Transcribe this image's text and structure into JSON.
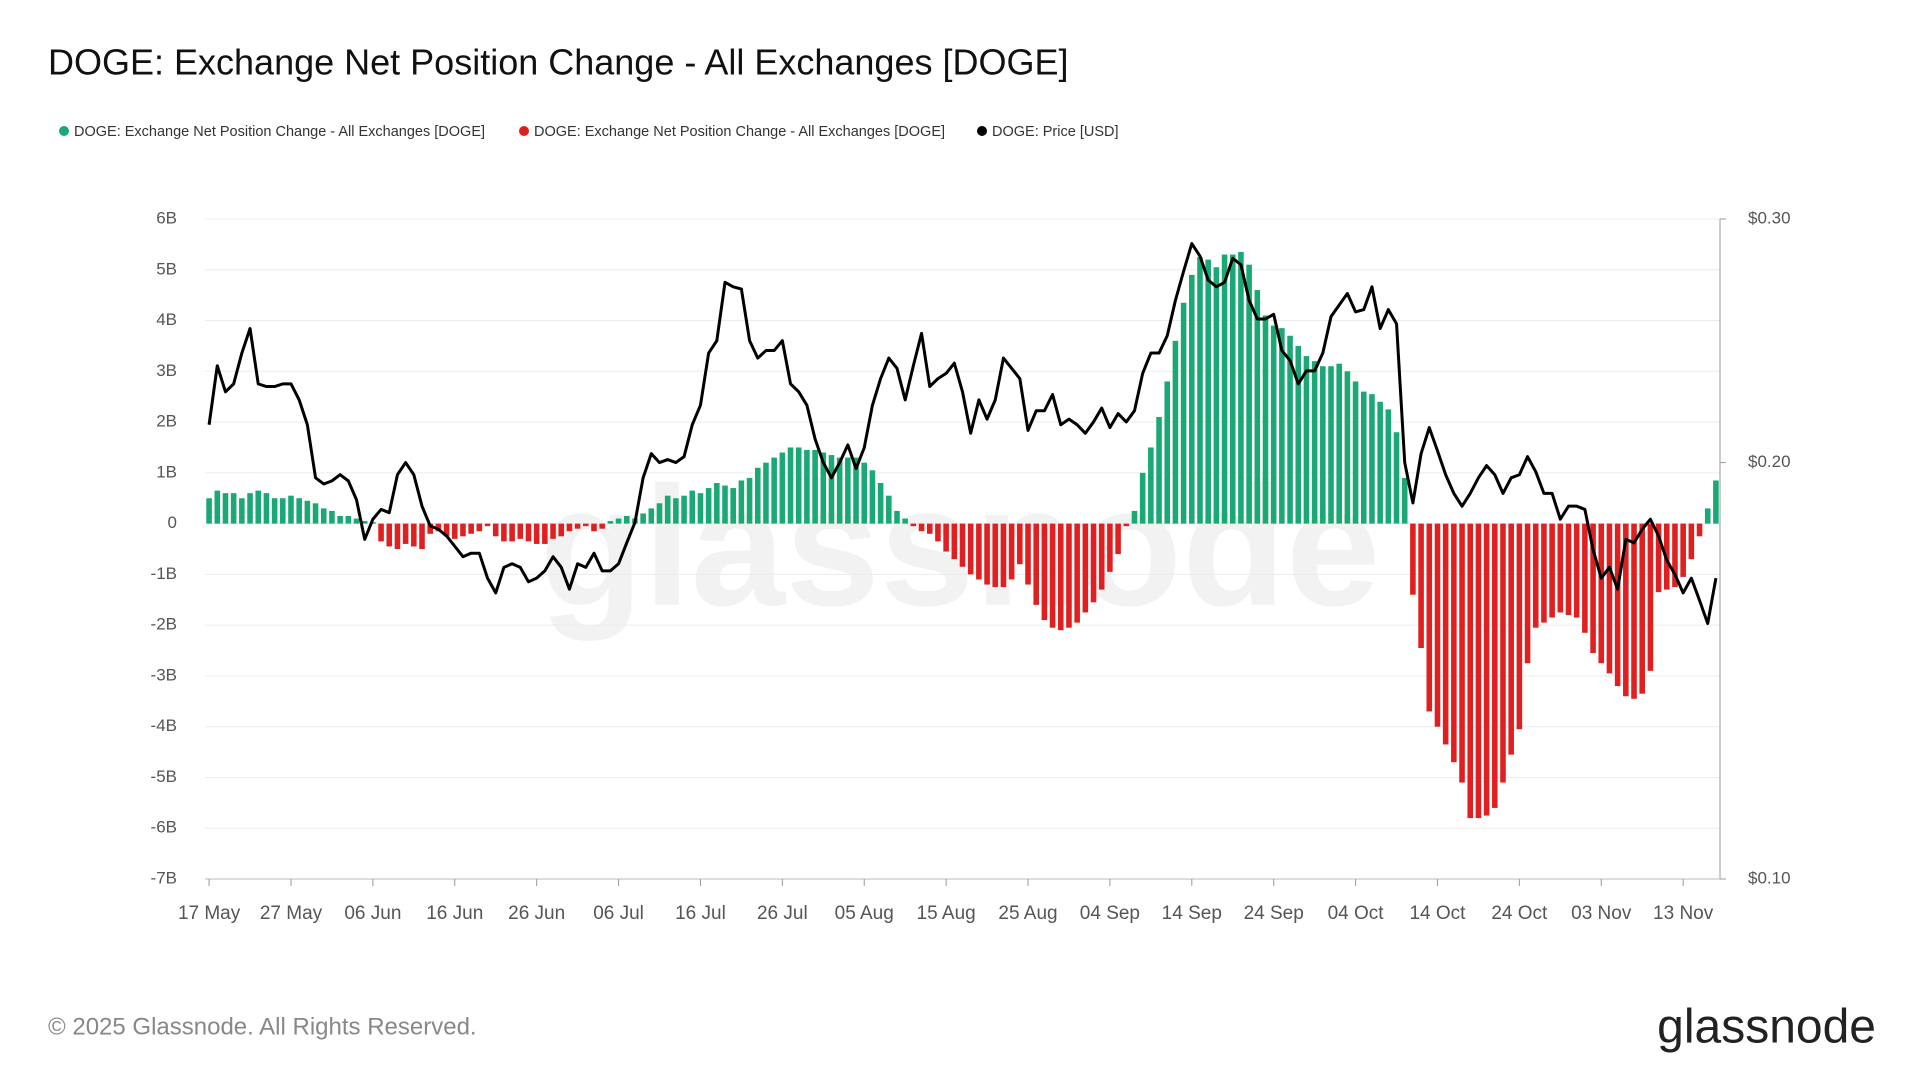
{
  "chart_data": {
    "type": "bar",
    "title": "DOGE: Exchange Net Position Change - All Exchanges [DOGE]",
    "watermark": "glassnode",
    "copyright": "© 2025 Glassnode. All Rights Reserved.",
    "logo": "glassnode",
    "categories": [
      "17 May",
      null,
      null,
      null,
      null,
      null,
      null,
      null,
      null,
      null,
      "27 May",
      null,
      null,
      null,
      null,
      null,
      null,
      null,
      null,
      null,
      "06 Jun",
      null,
      null,
      null,
      null,
      null,
      null,
      null,
      null,
      null,
      "16 Jun",
      null,
      null,
      null,
      null,
      null,
      null,
      null,
      null,
      null,
      "26 Jun",
      null,
      null,
      null,
      null,
      null,
      null,
      null,
      null,
      null,
      "06 Jul",
      null,
      null,
      null,
      null,
      null,
      null,
      null,
      null,
      null,
      "16 Jul",
      null,
      null,
      null,
      null,
      null,
      null,
      null,
      null,
      null,
      "26 Jul",
      null,
      null,
      null,
      null,
      null,
      null,
      null,
      null,
      null,
      "05 Aug",
      null,
      null,
      null,
      null,
      null,
      null,
      null,
      null,
      null,
      "15 Aug",
      null,
      null,
      null,
      null,
      null,
      null,
      null,
      null,
      null,
      "25 Aug",
      null,
      null,
      null,
      null,
      null,
      null,
      null,
      null,
      null,
      "04 Sep",
      null,
      null,
      null,
      null,
      null,
      null,
      null,
      null,
      null,
      "14 Sep",
      null,
      null,
      null,
      null,
      null,
      null,
      null,
      null,
      null,
      "24 Sep",
      null,
      null,
      null,
      null,
      null,
      null,
      null,
      null,
      null,
      "04 Oct",
      null,
      null,
      null,
      null,
      null,
      null,
      null,
      null,
      null,
      "14 Oct",
      null,
      null,
      null,
      null,
      null,
      null,
      null,
      null,
      null,
      "24 Oct",
      null,
      null,
      null,
      null,
      null,
      null,
      null,
      null,
      null,
      "03 Nov",
      null,
      null,
      null,
      null,
      null,
      null,
      null,
      null,
      null,
      "13 Nov",
      null,
      null,
      null,
      null
    ],
    "series": [
      {
        "name": "DOGE: Exchange Net Position Change - All Exchanges [DOGE]",
        "color": "#1aa874",
        "type": "bar",
        "values": [
          500000000.0,
          650000000.0,
          600000000.0,
          600000000.0,
          500000000.0,
          600000000.0,
          650000000.0,
          600000000.0,
          500000000.0,
          500000000.0,
          550000000.0,
          500000000.0,
          450000000.0,
          400000000.0,
          300000000.0,
          250000000.0,
          150000000.0,
          150000000.0,
          100000000.0,
          50000000.0,
          30000000.0,
          null,
          null,
          null,
          null,
          null,
          null,
          null,
          null,
          null,
          null,
          null,
          null,
          null,
          null,
          null,
          null,
          null,
          null,
          null,
          null,
          null,
          null,
          null,
          null,
          null,
          null,
          null,
          null,
          50000000.0,
          100000000.0,
          150000000.0,
          100000000.0,
          200000000.0,
          300000000.0,
          400000000.0,
          550000000.0,
          500000000.0,
          550000000.0,
          650000000.0,
          600000000.0,
          700000000.0,
          800000000.0,
          750000000.0,
          700000000.0,
          850000000.0,
          900000000.0,
          1100000000.0,
          1200000000.0,
          1300000000.0,
          1400000000.0,
          1500000000.0,
          1500000000.0,
          1450000000.0,
          1450000000.0,
          1400000000.0,
          1350000000.0,
          1300000000.0,
          1300000000.0,
          1300000000.0,
          1200000000.0,
          1050000000.0,
          800000000.0,
          550000000.0,
          250000000.0,
          100000000.0,
          null,
          null,
          null,
          null,
          null,
          null,
          null,
          null,
          null,
          null,
          null,
          null,
          null,
          null,
          null,
          null,
          null,
          null,
          null,
          null,
          null,
          null,
          null,
          null,
          null,
          null,
          null,
          250000000.0,
          1000000000.0,
          1500000000.0,
          2100000000.0,
          2800000000.0,
          3600000000.0,
          4350000000.0,
          4900000000.0,
          5250000000.0,
          5200000000.0,
          5050000000.0,
          5300000000.0,
          5300000000.0,
          5350000000.0,
          5100000000.0,
          4600000000.0,
          4100000000.0,
          3900000000.0,
          3850000000.0,
          3700000000.0,
          3500000000.0,
          3300000000.0,
          3200000000.0,
          3100000000.0,
          3100000000.0,
          3150000000.0,
          3000000000.0,
          2800000000.0,
          2600000000.0,
          2550000000.0,
          2400000000.0,
          2250000000.0,
          1800000000.0,
          900000000.0,
          null,
          null,
          null,
          null,
          null,
          null,
          null,
          null,
          null,
          null,
          null,
          null,
          null,
          null,
          null,
          null,
          null,
          null,
          null,
          null,
          null,
          null,
          null,
          null,
          null,
          null,
          null,
          null,
          null,
          null,
          null,
          null,
          null,
          null,
          null,
          null,
          300000000.0,
          850000000.0
        ]
      },
      {
        "name": "DOGE: Exchange Net Position Change - All Exchanges [DOGE]",
        "color": "#e02020",
        "type": "bar",
        "values": [
          null,
          null,
          null,
          null,
          null,
          null,
          null,
          null,
          null,
          null,
          null,
          null,
          null,
          null,
          null,
          null,
          null,
          null,
          null,
          null,
          null,
          -350000000.0,
          -450000000.0,
          -500000000.0,
          -400000000.0,
          -450000000.0,
          -500000000.0,
          -200000000.0,
          -150000000.0,
          -250000000.0,
          -300000000.0,
          -250000000.0,
          -200000000.0,
          -150000000.0,
          -50000000.0,
          -250000000.0,
          -350000000.0,
          -350000000.0,
          -300000000.0,
          -350000000.0,
          -400000000.0,
          -400000000.0,
          -300000000.0,
          -250000000.0,
          -150000000.0,
          -100000000.0,
          -50000000.0,
          -150000000.0,
          -100000000.0,
          null,
          null,
          null,
          null,
          null,
          null,
          null,
          null,
          null,
          null,
          null,
          null,
          null,
          null,
          null,
          null,
          null,
          null,
          null,
          null,
          null,
          null,
          null,
          null,
          null,
          null,
          null,
          null,
          null,
          null,
          null,
          null,
          null,
          null,
          null,
          null,
          null,
          -50000000.0,
          -150000000.0,
          -200000000.0,
          -350000000.0,
          -550000000.0,
          -700000000.0,
          -850000000.0,
          -1000000000.0,
          -1100000000.0,
          -1200000000.0,
          -1250000000.0,
          -1250000000.0,
          -1100000000.0,
          -800000000.0,
          -1200000000.0,
          -1600000000.0,
          -1900000000.0,
          -2050000000.0,
          -2100000000.0,
          -2050000000.0,
          -1950000000.0,
          -1750000000.0,
          -1550000000.0,
          -1300000000.0,
          -950000000.0,
          -600000000.0,
          -50000000.0,
          null,
          null,
          null,
          null,
          null,
          null,
          null,
          null,
          null,
          null,
          null,
          null,
          null,
          null,
          null,
          null,
          null,
          null,
          null,
          null,
          null,
          null,
          null,
          null,
          null,
          null,
          null,
          null,
          null,
          null,
          null,
          null,
          null,
          null,
          -1400000000.0,
          -2450000000.0,
          -3700000000.0,
          -4000000000.0,
          -4350000000.0,
          -4700000000.0,
          -5100000000.0,
          -5800000000.0,
          -5800000000.0,
          -5750000000.0,
          -5600000000.0,
          -5100000000.0,
          -4550000000.0,
          -4050000000.0,
          -2750000000.0,
          -2050000000.0,
          -1950000000.0,
          -1850000000.0,
          -1750000000.0,
          -1800000000.0,
          -1850000000.0,
          -2150000000.0,
          -2550000000.0,
          -2750000000.0,
          -2950000000.0,
          -3200000000.0,
          -3400000000.0,
          -3450000000.0,
          -3350000000.0,
          -2900000000.0,
          -1350000000.0,
          -1300000000.0,
          -1250000000.0,
          -1050000000.0,
          -700000000.0,
          -250000000.0,
          null,
          null
        ]
      },
      {
        "name": "DOGE: Price [USD]",
        "color": "#000000",
        "type": "line",
        "axis": "y2",
        "values": [
          0.213,
          0.235,
          0.225,
          0.228,
          0.24,
          0.25,
          0.228,
          0.227,
          0.227,
          0.228,
          0.228,
          0.222,
          0.213,
          0.195,
          0.193,
          0.194,
          0.196,
          0.194,
          0.188,
          0.176,
          0.182,
          0.185,
          0.184,
          0.196,
          0.2,
          0.196,
          0.186,
          0.18,
          0.179,
          0.177,
          0.174,
          0.171,
          0.172,
          0.172,
          0.165,
          0.161,
          0.168,
          0.169,
          0.168,
          0.164,
          0.165,
          0.167,
          0.171,
          0.168,
          0.162,
          0.169,
          0.168,
          0.172,
          0.167,
          0.167,
          0.169,
          0.175,
          0.181,
          0.195,
          0.203,
          0.2,
          0.201,
          0.2,
          0.202,
          0.213,
          0.22,
          0.24,
          0.245,
          0.27,
          0.268,
          0.267,
          0.245,
          0.238,
          0.241,
          0.241,
          0.245,
          0.228,
          0.225,
          0.22,
          0.208,
          0.2,
          0.195,
          0.2,
          0.206,
          0.198,
          0.205,
          0.22,
          0.23,
          0.238,
          0.234,
          0.222,
          0.235,
          0.248,
          0.227,
          0.23,
          0.232,
          0.236,
          0.225,
          0.21,
          0.222,
          0.215,
          0.222,
          0.238,
          0.234,
          0.23,
          0.211,
          0.218,
          0.218,
          0.224,
          0.213,
          0.215,
          0.213,
          0.21,
          0.214,
          0.219,
          0.212,
          0.217,
          0.214,
          0.218,
          0.232,
          0.24,
          0.24,
          0.247,
          0.262,
          0.275,
          0.288,
          0.282,
          0.271,
          0.268,
          0.27,
          0.281,
          0.278,
          0.262,
          0.254,
          0.254,
          0.256,
          0.241,
          0.237,
          0.228,
          0.233,
          0.233,
          0.24,
          0.255,
          0.26,
          0.265,
          0.257,
          0.258,
          0.268,
          0.25,
          0.258,
          0.252,
          0.2,
          0.187,
          0.203,
          0.212,
          0.204,
          0.196,
          0.19,
          0.186,
          0.19,
          0.195,
          0.199,
          0.196,
          0.19,
          0.195,
          0.196,
          0.202,
          0.197,
          0.19,
          0.19,
          0.182,
          0.186,
          0.186,
          0.185,
          0.173,
          0.165,
          0.168,
          0.162,
          0.176,
          0.175,
          0.179,
          0.182,
          0.177,
          0.17,
          0.166,
          0.161,
          0.165,
          0.159,
          0.153,
          0.165
        ]
      }
    ],
    "ylim": [
      -7000000000.0,
      6000000000.0
    ],
    "yticks": [
      {
        "value": -7000000000.0,
        "label": "-7B"
      },
      {
        "value": -6000000000.0,
        "label": "-6B"
      },
      {
        "value": -5000000000.0,
        "label": "-5B"
      },
      {
        "value": -4000000000.0,
        "label": "-4B"
      },
      {
        "value": -3000000000.0,
        "label": "-3B"
      },
      {
        "value": -2000000000.0,
        "label": "-2B"
      },
      {
        "value": -1000000000.0,
        "label": "-1B"
      },
      0,
      {
        "value": 1000000000.0,
        "label": "1B"
      },
      {
        "value": 2000000000.0,
        "label": "2B"
      },
      {
        "value": 3000000000.0,
        "label": "3B"
      },
      {
        "value": 4000000000.0,
        "label": "4B"
      },
      {
        "value": 5000000000.0,
        "label": "5B"
      },
      {
        "value": 6000000000.0,
        "label": "6B"
      }
    ],
    "y2lim": [
      0.1,
      0.3
    ],
    "y2ticks": [
      {
        "value": 0.1,
        "label": "$0.10"
      },
      {
        "value": 0.2,
        "label": "$0.20"
      },
      {
        "value": 0.3,
        "label": "$0.30"
      }
    ],
    "y2scale": "log",
    "grid": true,
    "legend": "top-left"
  }
}
